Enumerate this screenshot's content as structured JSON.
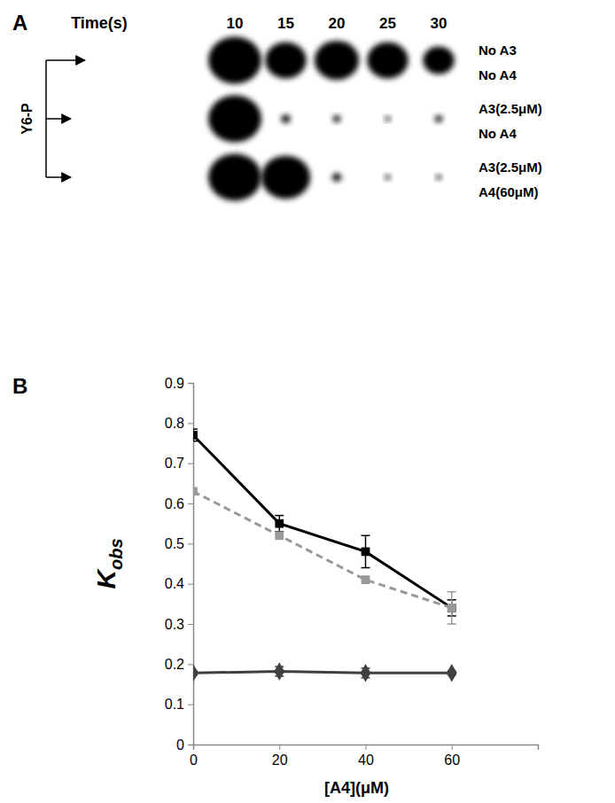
{
  "chart_data": [
    {
      "type": "blot",
      "title": "A",
      "x_label": "Time(s)",
      "categories": [
        10,
        15,
        20,
        25,
        30
      ],
      "y_label": "Y6-P",
      "color": "#000000",
      "series": [
        {
          "name": [
            "No A3",
            "No A4"
          ],
          "values": [
            1.0,
            0.6,
            0.7,
            0.6,
            0.35
          ]
        },
        {
          "name": [
            "A3(2.5μM)",
            "No A4"
          ],
          "values": [
            1.0,
            0.03,
            0.02,
            0.01,
            0.02
          ]
        },
        {
          "name": [
            "A3(2.5μM)",
            "A4(60μM)"
          ],
          "values": [
            1.0,
            0.85,
            0.03,
            0.01,
            0.01
          ]
        }
      ]
    },
    {
      "type": "line",
      "title": "B",
      "x_label": "[A4](μM)",
      "y_label": [
        "K",
        "obs"
      ],
      "x": [
        0,
        20,
        40,
        60
      ],
      "xlim": [
        0,
        80
      ],
      "xticks": [
        0,
        20,
        40,
        60
      ],
      "ylim": [
        0,
        0.9
      ],
      "yticks": [
        0,
        0.1,
        0.2,
        0.3,
        0.4,
        0.5,
        0.6,
        0.7,
        0.8,
        0.9
      ],
      "grid": false,
      "series": [
        {
          "color": "#000000",
          "marker": "square",
          "line_style": "solid",
          "values": [
            0.77,
            0.55,
            0.48,
            0.34
          ],
          "errors": [
            0.015,
            0.02,
            0.04,
            0.02
          ]
        },
        {
          "color": "#999999",
          "marker": "square",
          "line_style": "dashed",
          "values": [
            0.63,
            0.52,
            0.41,
            0.34
          ],
          "errors": [
            null,
            null,
            null,
            0.04
          ]
        },
        {
          "color": "#404040",
          "marker": "diamond",
          "line_style": "solid",
          "values": [
            0.178,
            0.182,
            0.178,
            0.178
          ],
          "errors": [
            0.005,
            0.012,
            0.012,
            0.005
          ]
        }
      ]
    }
  ]
}
